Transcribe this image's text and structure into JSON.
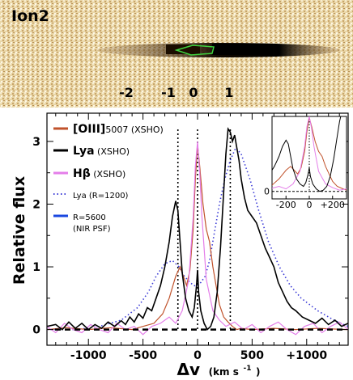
{
  "spectrum_image": {
    "title": "Ion2",
    "velocity_markers": [
      "-2",
      "-1",
      "0",
      "1"
    ]
  },
  "chart_data": {
    "type": "line",
    "xlabel_main": "Δv",
    "xlabel_unit": "(km s",
    "xlabel_exp": "-1",
    "xlabel_close": ")",
    "ylabel": "Relative flux",
    "xlim": [
      -1380,
      1380
    ],
    "ylim": [
      -0.25,
      3.45
    ],
    "xticks": [
      -1000,
      -500,
      0,
      500,
      1000
    ],
    "xtick_labels": [
      "-1000",
      "-500",
      "0",
      "500",
      "+1000"
    ],
    "yticks": [
      0,
      1,
      2,
      3
    ],
    "ytick_labels": [
      "0",
      "1",
      "2",
      "3"
    ],
    "zero_line": 0,
    "vlines": [
      -180,
      0,
      300
    ],
    "legend": [
      {
        "main": "[OIII]",
        "suffix": "5007 (XSHO)",
        "color": "#c0522b",
        "style": "solid"
      },
      {
        "main": "Lya",
        "suffix": " (XSHO)",
        "color": "#000000",
        "style": "solid"
      },
      {
        "main": "Hβ",
        "suffix": " (XSHO)",
        "color": "#e47ee9",
        "style": "solid"
      },
      {
        "main": "",
        "suffix": "Lya (R=1200)",
        "color": "#3a3ad6",
        "style": "dotted"
      },
      {
        "main": "",
        "suffix": "R=5600",
        "suffix2": "(NIR PSF)",
        "color": "#1947e0",
        "style": "solid"
      }
    ],
    "series": [
      {
        "key": "lya",
        "color": "#000000",
        "x": [
          -1380,
          -1300,
          -1240,
          -1180,
          -1120,
          -1060,
          -1000,
          -940,
          -880,
          -820,
          -760,
          -700,
          -660,
          -620,
          -580,
          -540,
          -500,
          -460,
          -420,
          -380,
          -340,
          -300,
          -260,
          -230,
          -200,
          -180,
          -160,
          -140,
          -110,
          -80,
          -50,
          -30,
          -10,
          0,
          10,
          30,
          60,
          90,
          120,
          150,
          180,
          210,
          240,
          260,
          280,
          300,
          320,
          340,
          360,
          380,
          400,
          430,
          460,
          500,
          540,
          580,
          620,
          660,
          700,
          740,
          780,
          820,
          860,
          900,
          960,
          1020,
          1080,
          1140,
          1200,
          1260,
          1320,
          1380
        ],
        "y": [
          0.05,
          0.08,
          0.0,
          0.12,
          0.02,
          0.1,
          0.0,
          0.08,
          0.02,
          0.12,
          0.05,
          0.14,
          0.08,
          0.2,
          0.12,
          0.25,
          0.18,
          0.35,
          0.3,
          0.5,
          0.7,
          1.0,
          1.4,
          1.8,
          2.05,
          1.9,
          1.4,
          0.9,
          0.5,
          0.3,
          0.2,
          0.35,
          0.7,
          0.95,
          0.6,
          0.3,
          0.1,
          0.0,
          0.05,
          0.2,
          0.6,
          1.3,
          2.2,
          2.8,
          3.2,
          3.15,
          3.0,
          3.1,
          2.9,
          2.7,
          2.4,
          2.1,
          1.9,
          1.8,
          1.7,
          1.5,
          1.3,
          1.15,
          1.0,
          0.75,
          0.6,
          0.45,
          0.35,
          0.3,
          0.2,
          0.15,
          0.1,
          0.18,
          0.08,
          0.15,
          0.05,
          0.1
        ]
      },
      {
        "key": "oiii",
        "color": "#c0522b",
        "x": [
          -1380,
          -1200,
          -1000,
          -800,
          -600,
          -500,
          -400,
          -320,
          -260,
          -200,
          -160,
          -130,
          -100,
          -70,
          -40,
          -20,
          0,
          20,
          50,
          80,
          110,
          140,
          170,
          200,
          240,
          280,
          320,
          360,
          400,
          500,
          700,
          900,
          1100,
          1380
        ],
        "y": [
          0.0,
          0.03,
          0.0,
          0.03,
          0.0,
          0.05,
          0.1,
          0.25,
          0.5,
          0.85,
          1.0,
          0.85,
          0.7,
          0.95,
          1.6,
          2.4,
          2.95,
          2.6,
          2.0,
          1.6,
          1.4,
          1.0,
          0.7,
          0.4,
          0.2,
          0.12,
          0.05,
          0.0,
          0.02,
          0.0,
          0.02,
          0.0,
          0.02,
          0.0
        ]
      },
      {
        "key": "hbeta",
        "color": "#e47ee9",
        "x": [
          -1380,
          -1300,
          -1220,
          -1140,
          -1060,
          -980,
          -900,
          -820,
          -740,
          -660,
          -580,
          -500,
          -420,
          -340,
          -260,
          -200,
          -140,
          -80,
          -40,
          -20,
          0,
          20,
          40,
          80,
          140,
          200,
          260,
          340,
          420,
          500,
          580,
          660,
          740,
          820,
          900,
          980,
          1060,
          1140,
          1220,
          1300,
          1380
        ],
        "y": [
          0.05,
          -0.05,
          0.1,
          0.0,
          -0.05,
          0.08,
          0.0,
          -0.05,
          0.1,
          0.0,
          0.05,
          -0.08,
          0.05,
          0.1,
          0.2,
          0.1,
          0.3,
          0.8,
          1.8,
          2.6,
          3.0,
          2.5,
          1.8,
          0.8,
          0.3,
          0.15,
          0.05,
          0.12,
          0.0,
          0.08,
          -0.05,
          0.05,
          0.12,
          0.0,
          -0.08,
          0.05,
          0.1,
          -0.05,
          0.05,
          0.12,
          0.0
        ]
      },
      {
        "key": "lya_r1200",
        "color": "#3a3ad6",
        "dotted": true,
        "x": [
          -1380,
          -1100,
          -900,
          -700,
          -550,
          -450,
          -380,
          -300,
          -230,
          -170,
          -120,
          -70,
          -30,
          0,
          30,
          70,
          110,
          150,
          200,
          250,
          300,
          350,
          400,
          480,
          560,
          650,
          750,
          850,
          950,
          1100,
          1250,
          1380
        ],
        "y": [
          0.0,
          0.0,
          0.05,
          0.15,
          0.35,
          0.6,
          0.85,
          1.05,
          1.1,
          1.0,
          0.85,
          0.75,
          0.7,
          0.7,
          0.75,
          0.85,
          1.1,
          1.5,
          2.0,
          2.4,
          2.7,
          2.9,
          2.8,
          2.4,
          1.9,
          1.4,
          1.0,
          0.7,
          0.5,
          0.3,
          0.15,
          0.05
        ]
      }
    ],
    "inset": {
      "xlim": [
        -320,
        320
      ],
      "ylim": [
        -0.3,
        3.0
      ],
      "xticks": [
        -200,
        0,
        200
      ],
      "xtick_labels": [
        "-200",
        "0",
        "+200"
      ],
      "ytick_labels": [
        "0"
      ]
    }
  }
}
